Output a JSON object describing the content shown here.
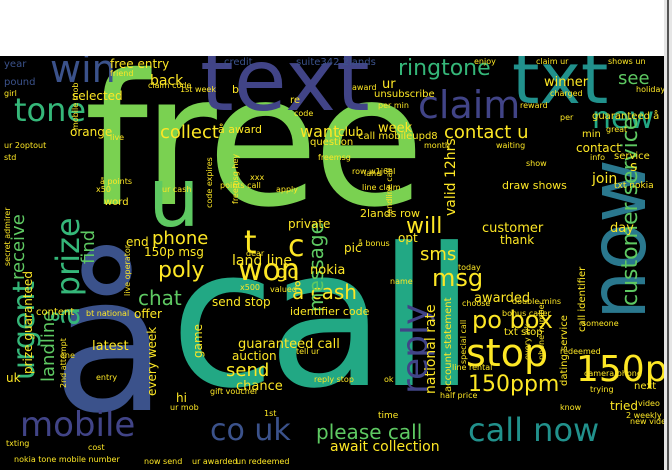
{
  "palette": {
    "yellow": "#fde725",
    "green": "#7ad151",
    "lime": "#5ec962",
    "teal": "#21918c",
    "cyan": "#22a884",
    "blue": "#3b528b",
    "indigo": "#414487",
    "purple": "#482677",
    "dark": "#440154",
    "greenish": "#35b779",
    "aqua": "#2a788e"
  },
  "words": {
    "free": "free",
    "call": "call",
    "text": "text",
    "txt": "txt",
    "now": "now",
    "a_big": "å",
    "u_big": "u",
    "claim": "claim",
    "win": "win",
    "tone": "tone",
    "ringtone": "ringtone",
    "new": "new",
    "mobile": "mobile",
    "call_now": "call now",
    "stop": "stop",
    "reply": "reply",
    "prize": "å prize",
    "urgent": "urgent",
    "won": "won",
    "co_uk": "co uk",
    "please_call": "please call",
    "p150": "150p",
    "ppm150": "150ppm",
    "po_box": "po box",
    "cash": "å cash",
    "collect": "collect",
    "contact_u": "contact u",
    "want": "want",
    "customer_service": "customer service",
    "t": "t",
    "c": "c",
    "go": "go",
    "message": "message",
    "will": "will",
    "sms": "sms",
    "msg": "msg",
    "phone": "phone",
    "poly": "poly",
    "chat": "chat",
    "send": "send",
    "land_line": "land line",
    "nokia": "nokia",
    "week": "week",
    "landline": "landline",
    "receive": "receive",
    "find": "find",
    "guaranteed_call": "guaranteed call",
    "auction": "auction",
    "chance": "chance",
    "await_collection": "await collection",
    "latest": "latest",
    "every_week": "every week",
    "selected": "selected",
    "orange": "orange",
    "back": "back",
    "free_entry": "free entry",
    "winner": "winner",
    "see": "see",
    "suite342_2lands": "suite342 2lands",
    "credit": "credit",
    "year": "year",
    "pound": "pound",
    "club": "club",
    "a_award": "å award",
    "contact": "contact",
    "join": "join",
    "day": "day",
    "customer": "customer",
    "thank": "thank",
    "opt": "opt",
    "awarded": "awarded",
    "tried": "tried",
    "next": "next",
    "uk": "uk",
    "hi": "hi",
    "end": "end",
    "offer": "offer",
    "game": "game",
    "pic": "pic",
    "send_stop": "send stop",
    "identifier_code": "identifier code",
    "national_rate": "national rate",
    "valid_12hrs": "valid 12hrs",
    "prize_guaranteed": "prize guaranteed",
    "msg150p": "150p msg",
    "call_identifier": "call identifier",
    "draw_shows": "draw shows",
    "dating_service": "dating service",
    "service": "service",
    "sae": "sae",
    "txt_stop": "txt stop",
    "private": "private",
    "ur": "ur",
    "question": "question",
    "re": "re",
    "unsubscribe": "unsubscribe",
    "guaranteed_a": "guaranteed å",
    "call_mobileupd8": "call mobileupd8",
    "account_statement": "account statement",
    "two_lands_row": "2lands row",
    "word": "word",
    "b": "b",
    "text_nokia": "txt nokia",
    "camera_phone": "camera phone",
    "nokia_tone": "nokia tone mobile number",
    "now_send": "now send",
    "ur_awarded": "ur awarded",
    "tell_ur": "tell ur",
    "a_bonus": "å bonus",
    "reply_stop": "reply stop",
    "time": "time",
    "ur_mob": "ur mob",
    "std": "std",
    "charged": "charged",
    "holiday": "holiday",
    "2nd_attempt": "2nd attempt",
    "gift_voucher": "gift voucher",
    "freemsg": "freemsg",
    "today": "today",
    "choose": "choose",
    "someone": "someone",
    "trying": "trying",
    "special_call": "special call",
    "bt_national": "bt national",
    "per_min": "per min",
    "code": "code",
    "min": "min",
    "per": "per",
    "friend": "friend",
    "reward": "reward",
    "claim_ur": "claim ur",
    "shows_un": "shows un",
    "apply": "apply",
    "xxx": "xxx",
    "valued": "valued",
    "content": "content",
    "live_operator": "live operator",
    "entry": "entry",
    "name": "name",
    "dear": "dear",
    "one": "one",
    "girl": "girl",
    "two_weekly": "2 weekly",
    "cost": "cost",
    "txting": "txting",
    "rental": "line rental",
    "half_price": "half price",
    "first_week": "1st week",
    "first": "1st",
    "month": "month",
    "waiting": "waiting",
    "enjoy": "enjoy",
    "secret_admirer": "secret admirer",
    "redeemed": "redeemed",
    "great": "great",
    "info": "info",
    "double_mins": "double mins",
    "landline_call": "landline call",
    "land": "land",
    "twoOptout": "ur 2optout",
    "claim_code": "claim code",
    "x50": "x50",
    "a_points": "å points",
    "points_call": "points call",
    "award": "award",
    "x500": "x500",
    "row_wc": "row w1j6hl",
    "code_expires": "code expires",
    "freemsg_hey": "freemsg hey",
    "mobile_mob": "mobile mob",
    "video": "video",
    "new_video": "new video",
    "unredeemed": "un redeemed",
    "ur_cash": "ur cash",
    "every_wk": "every wk",
    "phone_number": "phone number",
    "bonus_caller": "bonus caller",
    "live": "live",
    "line_claim": "line claim",
    "ringtone_reply": "reply",
    "s": "s",
    "ok": "ok",
    "know": "know",
    "show": "show"
  }
}
